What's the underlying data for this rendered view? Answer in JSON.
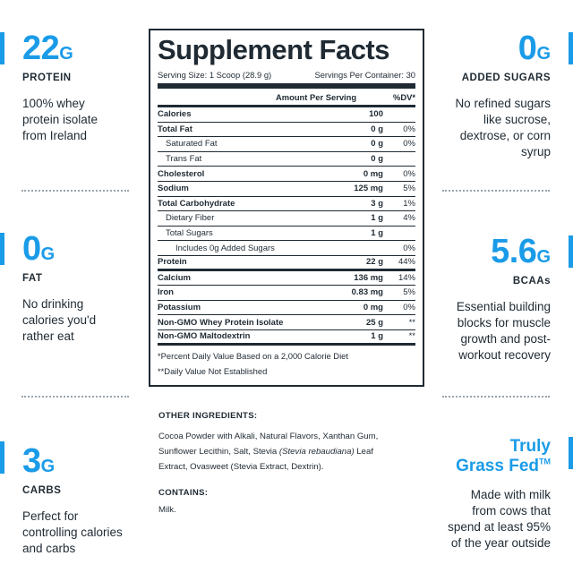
{
  "accent_color": "#1a9be8",
  "left_stats": [
    {
      "value": "22",
      "unit": "G",
      "label": "PROTEIN",
      "desc": [
        "100% whey",
        "protein isolate",
        "from Ireland"
      ]
    },
    {
      "value": "0",
      "unit": "G",
      "label": "FAT",
      "desc": [
        "No drinking",
        "calories you'd",
        "rather eat"
      ]
    },
    {
      "value": "3",
      "unit": "G",
      "label": "CARBS",
      "desc": [
        "Perfect for",
        "controlling calories",
        "and carbs"
      ]
    }
  ],
  "right_stats": [
    {
      "value": "0",
      "unit": "G",
      "label": "ADDED SUGARS",
      "desc": [
        "No refined sugars",
        "like sucrose,",
        "dextrose, or corn",
        "syrup"
      ]
    },
    {
      "value": "5.6",
      "unit": "G",
      "label": "BCAAs",
      "desc": [
        "Essential building",
        "blocks for muscle",
        "growth and post-",
        "workout recovery"
      ]
    },
    {
      "value_lines": [
        "Truly",
        "Grass Fed"
      ],
      "tm": "TM",
      "desc": [
        "Made with milk",
        "from cows that",
        "spend at least 95%",
        "of the year outside"
      ]
    }
  ],
  "facts": {
    "title": "Supplement Facts",
    "serving_size": "Serving Size: 1 Scoop (28.9 g)",
    "servings_per_container": "Servings Per Container: 30",
    "col_amount": "Amount Per Serving",
    "col_dv": "%DV*",
    "rows": [
      {
        "name": "Calories",
        "amount": "100",
        "dv": ""
      },
      {
        "name": "Total Fat",
        "amount": "0 g",
        "dv": "0%"
      },
      {
        "name": "Saturated Fat",
        "amount": "0 g",
        "dv": "0%"
      },
      {
        "name": "Trans Fat",
        "amount": "0 g",
        "dv": ""
      },
      {
        "name": "Cholesterol",
        "amount": "0 mg",
        "dv": "0%"
      },
      {
        "name": "Sodium",
        "amount": "125 mg",
        "dv": "5%"
      },
      {
        "name": "Total Carbohydrate",
        "amount": "3 g",
        "dv": "1%"
      },
      {
        "name": "Dietary Fiber",
        "amount": "1 g",
        "dv": "4%"
      },
      {
        "name": "Total Sugars",
        "amount": "1 g",
        "dv": ""
      },
      {
        "name": "Includes 0g Added Sugars",
        "amount": "",
        "dv": "0%"
      },
      {
        "name": "Protein",
        "amount": "22 g",
        "dv": "44%"
      },
      {
        "name": "Calcium",
        "amount": "136 mg",
        "dv": "14%"
      },
      {
        "name": "Iron",
        "amount": "0.83 mg",
        "dv": "5%"
      },
      {
        "name": "Potassium",
        "amount": "0 mg",
        "dv": "0%"
      },
      {
        "name": "Non-GMO Whey Protein Isolate",
        "amount": "25 g",
        "dv": "**"
      },
      {
        "name": "Non-GMO Maltodextrin",
        "amount": "1 g",
        "dv": "**"
      }
    ],
    "footnote1": "*Percent Daily Value Based on a 2,000 Calorie Diet",
    "footnote2": "**Daily Value Not Established"
  },
  "other_ingredients": {
    "heading": "OTHER INGREDIENTS:",
    "text_before": "Cocoa Powder with Alkali, Natural Flavors, Xanthan Gum, Sunflower Lecithin, Salt, Stevia ",
    "text_italic": "(Stevia rebaudiana)",
    "text_after": " Leaf Extract, Ovasweet (Stevia Extract, Dextrin)."
  },
  "contains": {
    "heading": "CONTAINS:",
    "text": "Milk."
  }
}
